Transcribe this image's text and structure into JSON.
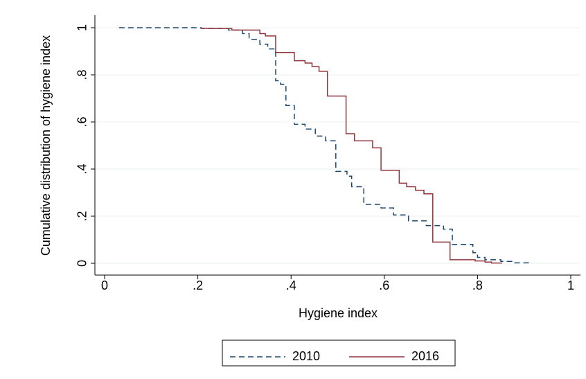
{
  "chart_data": {
    "type": "line",
    "xlabel": "Hygiene index",
    "ylabel": "Cumulative distribution of hygiene index",
    "xlim": [
      -0.0208,
      1.0208
    ],
    "ylim": [
      -0.05,
      1.053
    ],
    "xticks": [
      0,
      {
        "value": 0.2,
        "label": ".2"
      },
      {
        "value": 0.4,
        "label": ".4"
      },
      {
        "value": 0.6,
        "label": ".6"
      },
      {
        "value": 0.8,
        "label": ".8"
      },
      1
    ],
    "yticks": [
      0,
      {
        "value": 0.2,
        "label": ".2"
      },
      {
        "value": 0.4,
        "label": ".4"
      },
      {
        "value": 0.6,
        "label": ".6"
      },
      {
        "value": 0.8,
        "label": ".8"
      },
      1
    ],
    "grid": true,
    "legend": "bottom",
    "series": [
      {
        "name": "2010",
        "color": "#1a476f",
        "line_style": "dashed",
        "x": [
          0.031,
          0.207,
          0.207,
          0.266,
          0.266,
          0.296,
          0.296,
          0.31,
          0.31,
          0.333,
          0.333,
          0.35,
          0.35,
          0.367,
          0.367,
          0.377,
          0.377,
          0.389,
          0.389,
          0.407,
          0.407,
          0.43,
          0.43,
          0.452,
          0.452,
          0.474,
          0.474,
          0.496,
          0.496,
          0.52,
          0.52,
          0.53,
          0.53,
          0.556,
          0.556,
          0.593,
          0.593,
          0.62,
          0.62,
          0.652,
          0.652,
          0.69,
          0.69,
          0.727,
          0.727,
          0.746,
          0.746,
          0.79,
          0.79,
          0.8,
          0.8,
          0.816,
          0.816,
          0.85,
          0.85,
          0.88,
          0.88,
          0.912
        ],
        "values": [
          1,
          1,
          0.997,
          0.997,
          0.99,
          0.99,
          0.975,
          0.975,
          0.95,
          0.95,
          0.93,
          0.93,
          0.91,
          0.91,
          0.775,
          0.775,
          0.76,
          0.76,
          0.67,
          0.67,
          0.59,
          0.59,
          0.57,
          0.57,
          0.54,
          0.54,
          0.52,
          0.52,
          0.39,
          0.39,
          0.37,
          0.37,
          0.325,
          0.325,
          0.25,
          0.25,
          0.235,
          0.235,
          0.205,
          0.205,
          0.18,
          0.18,
          0.16,
          0.16,
          0.145,
          0.145,
          0.08,
          0.08,
          0.045,
          0.045,
          0.025,
          0.025,
          0.015,
          0.015,
          0.008,
          0.008,
          0.002,
          0.002
        ]
      },
      {
        "name": "2016",
        "color": "#90353b",
        "line_style": "solid",
        "x": [
          0.207,
          0.273,
          0.273,
          0.333,
          0.333,
          0.345,
          0.345,
          0.367,
          0.367,
          0.407,
          0.407,
          0.43,
          0.43,
          0.445,
          0.445,
          0.46,
          0.46,
          0.478,
          0.478,
          0.518,
          0.518,
          0.536,
          0.536,
          0.575,
          0.575,
          0.593,
          0.593,
          0.632,
          0.632,
          0.648,
          0.648,
          0.667,
          0.667,
          0.685,
          0.685,
          0.704,
          0.704,
          0.741,
          0.741,
          0.795,
          0.795,
          0.816,
          0.816,
          0.83,
          0.83,
          0.853
        ],
        "values": [
          0.997,
          0.997,
          0.99,
          0.99,
          0.975,
          0.975,
          0.965,
          0.965,
          0.895,
          0.895,
          0.86,
          0.86,
          0.85,
          0.85,
          0.835,
          0.835,
          0.815,
          0.815,
          0.71,
          0.71,
          0.55,
          0.55,
          0.52,
          0.52,
          0.49,
          0.49,
          0.395,
          0.395,
          0.34,
          0.34,
          0.325,
          0.325,
          0.31,
          0.31,
          0.295,
          0.295,
          0.09,
          0.09,
          0.015,
          0.015,
          0.01,
          0.01,
          0.005,
          0.005,
          0.001,
          0.001
        ]
      }
    ]
  }
}
